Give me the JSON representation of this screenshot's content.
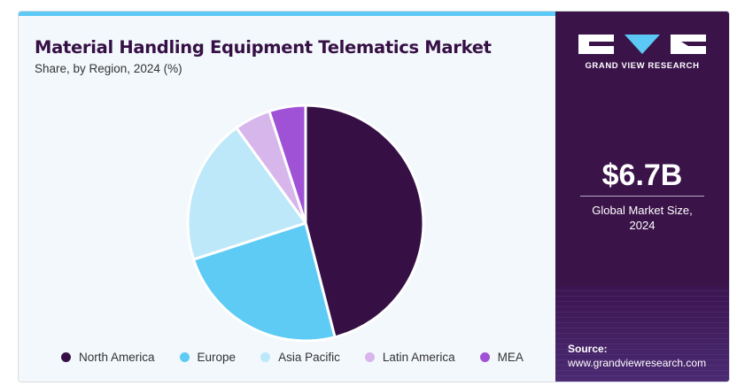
{
  "chart_data": {
    "type": "pie",
    "title": "Material Handling Equipment Telematics Market",
    "subtitle": "Share, by Region, 2024 (%)",
    "categories": [
      "North America",
      "Europe",
      "Asia Pacific",
      "Latin America",
      "MEA"
    ],
    "values": [
      46,
      24,
      20,
      5,
      5
    ],
    "colors": [
      "#361045",
      "#5ecbf5",
      "#bde8f9",
      "#d7b6ec",
      "#a052d6"
    ],
    "legend_position": "bottom"
  },
  "sidebar": {
    "brand": "GRAND VIEW RESEARCH",
    "market_value": "$6.7B",
    "market_caption_line1": "Global Market Size,",
    "market_caption_line2": "2024",
    "source_label": "Source:",
    "source_url": "www.grandviewresearch.com"
  }
}
